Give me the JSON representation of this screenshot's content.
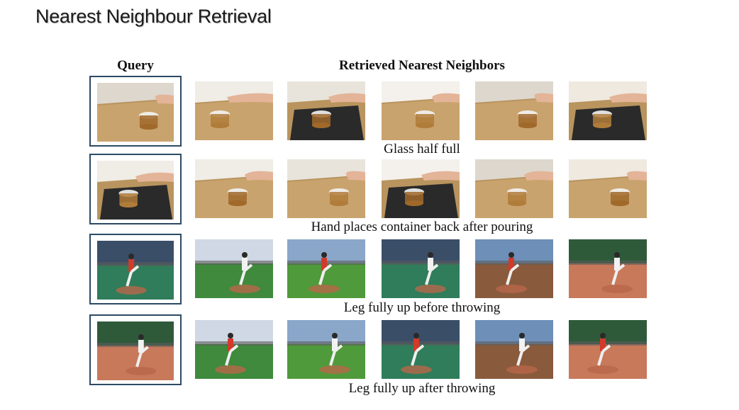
{
  "slide": {
    "title": "Nearest Neighbour Retrieval"
  },
  "figure": {
    "query_header": "Query",
    "retrieved_header": "Retrieved Nearest Neighbors",
    "rows": [
      {
        "caption": "Glass half full",
        "scene": "pouring"
      },
      {
        "caption": "Hand places container back after pouring",
        "scene": "pouring"
      },
      {
        "caption": "Leg fully up before throwing",
        "scene": "pitching"
      },
      {
        "caption": "Leg fully up after throwing",
        "scene": "pitching"
      }
    ]
  }
}
